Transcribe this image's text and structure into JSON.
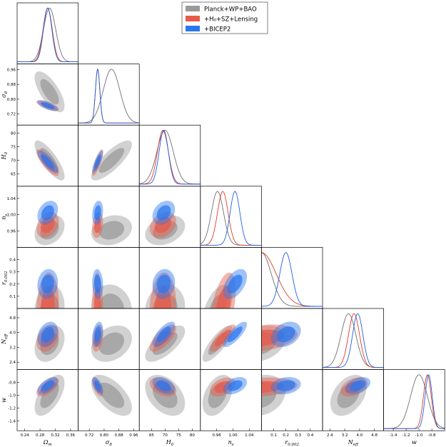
{
  "chart_data": {
    "type": "triangle-contour",
    "title": "",
    "parameters": [
      {
        "key": "om",
        "label_main": "Ω",
        "label_sub": "m",
        "range": [
          0.22,
          0.38
        ],
        "ticks": [
          "0.24",
          "0.28",
          "0.32",
          "0.36"
        ]
      },
      {
        "key": "s8",
        "label_main": "σ",
        "label_sub": "8",
        "range": [
          0.66,
          0.99
        ],
        "ticks": [
          "0.72",
          "0.80",
          "0.88",
          "0.96"
        ]
      },
      {
        "key": "h0",
        "label_main": "H",
        "label_sub": "0",
        "range": [
          60.5,
          83
        ],
        "ticks": [
          "65",
          "70",
          "75",
          "80"
        ]
      },
      {
        "key": "ns",
        "label_main": "n",
        "label_sub": "s",
        "range": [
          0.92,
          1.07
        ],
        "ticks": [
          "0.96",
          "1.00",
          "1.04"
        ]
      },
      {
        "key": "r",
        "label_main": "r",
        "label_sub": "0.002",
        "range": [
          0.0,
          0.5
        ],
        "ticks": [
          "0.1",
          "0.2",
          "0.3",
          "0.4"
        ]
      },
      {
        "key": "neff",
        "label_main": "N",
        "label_sub": "eff",
        "range": [
          2.0,
          5.3
        ],
        "ticks": [
          "2.4",
          "3.2",
          "4.0",
          "4.8"
        ]
      },
      {
        "key": "w",
        "label_main": "w",
        "label_sub": "",
        "range": [
          -1.55,
          -0.6
        ],
        "ticks": [
          "-1.4",
          "-1.2",
          "-1.0",
          "-0.8"
        ]
      }
    ],
    "series": [
      {
        "name": "Planck+WP+BAO",
        "color": "#707070",
        "fill": "#9a9a9a",
        "means": {
          "om": 0.305,
          "s8": 0.84,
          "h0": 70.0,
          "ns": 0.962,
          "r": 0.0,
          "neff": 3.4,
          "w": -1.0
        },
        "sigmas": {
          "om": 0.016,
          "s8": 0.045,
          "h0": 3.0,
          "ns": 0.015,
          "r": 0.08,
          "neff": 0.4,
          "w": 0.13
        }
      },
      {
        "name": "+H0+SZ+Lensing",
        "color": "#e03c28",
        "fill": "#e85a48",
        "means": {
          "om": 0.3,
          "s8": 0.765,
          "h0": 69.2,
          "ns": 0.975,
          "r": 0.0,
          "neff": 3.7,
          "w": -0.87
        },
        "sigmas": {
          "om": 0.012,
          "s8": 0.012,
          "h0": 2.0,
          "ns": 0.013,
          "r": 0.12,
          "neff": 0.3,
          "w": 0.06
        }
      },
      {
        "name": "+BICEP2",
        "color": "#1f5fe0",
        "fill": "#2a78f0",
        "means": {
          "om": 0.3,
          "s8": 0.765,
          "h0": 69.5,
          "ns": 1.005,
          "r": 0.2,
          "neff": 3.9,
          "w": -0.85
        },
        "sigmas": {
          "om": 0.011,
          "s8": 0.012,
          "h0": 1.7,
          "ns": 0.012,
          "r": 0.05,
          "neff": 0.28,
          "w": 0.055
        }
      }
    ],
    "legend": {
      "placement": "top-right",
      "entries": [
        "Planck+WP+BAO",
        "+H₀+SZ+Lensing",
        "+BICEP2"
      ]
    }
  }
}
